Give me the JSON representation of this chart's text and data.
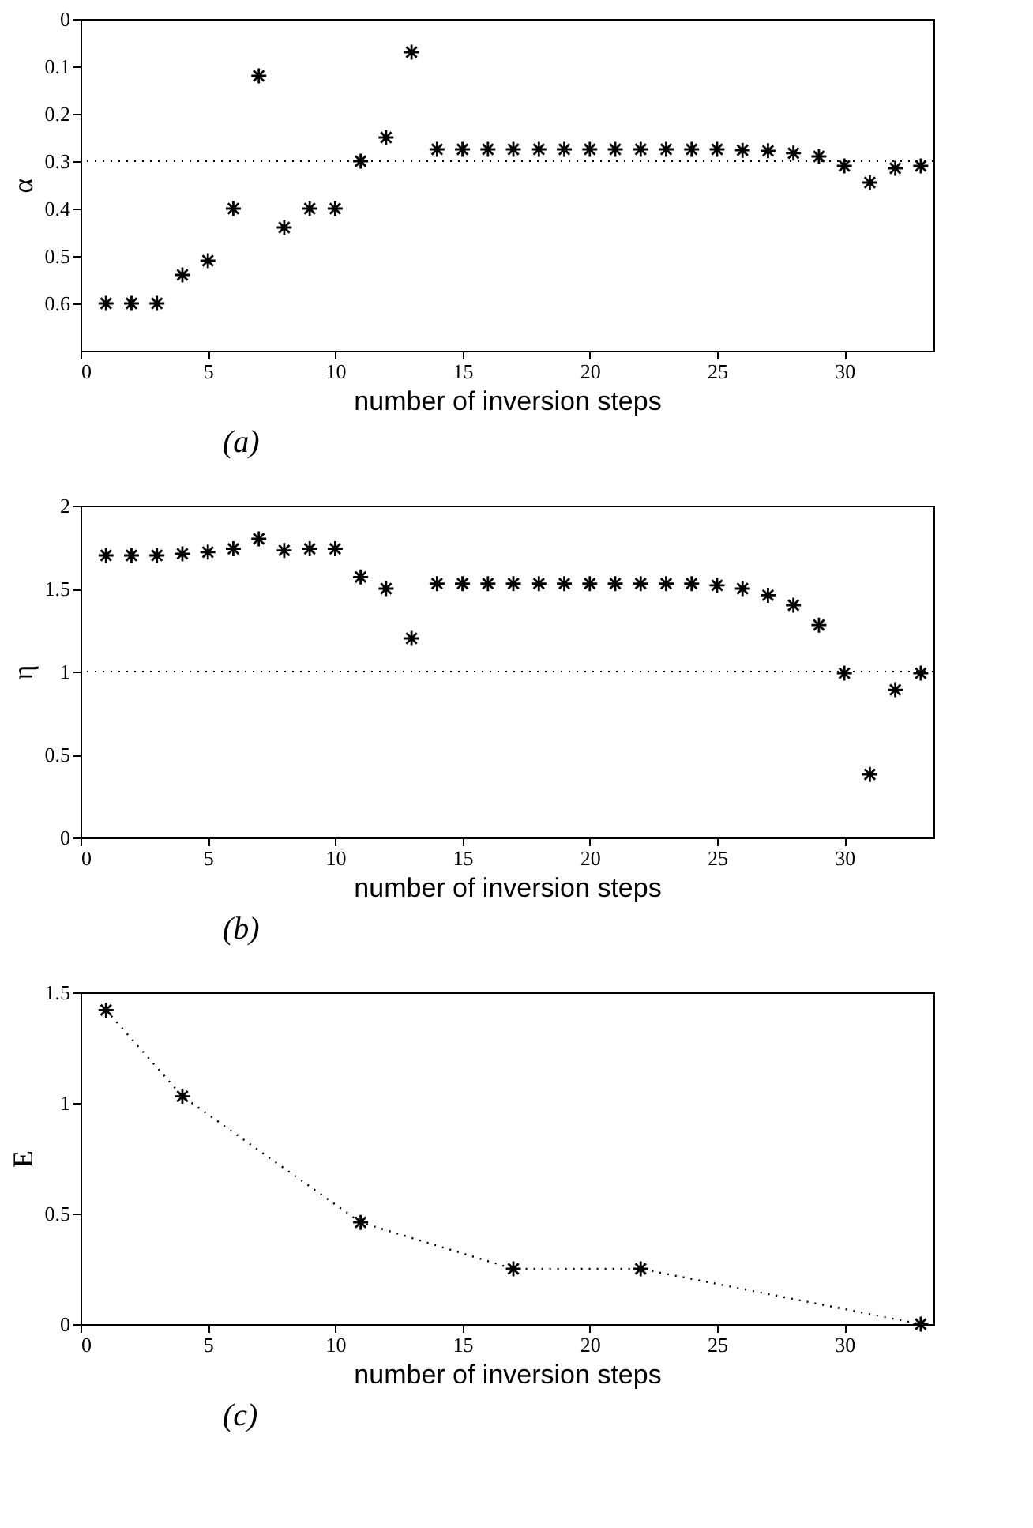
{
  "chart_data": [
    {
      "type": "scatter",
      "xlabel": "number of inversion steps",
      "ylabel": "α",
      "annotations": [
        "(a)"
      ],
      "marker": "cross",
      "grid": false,
      "x": [
        1,
        2,
        3,
        4,
        5,
        6,
        7,
        8,
        9,
        10,
        11,
        12,
        13,
        14,
        15,
        16,
        17,
        18,
        19,
        20,
        21,
        22,
        23,
        24,
        25,
        26,
        27,
        28,
        29,
        30,
        31,
        32,
        33
      ],
      "series": [
        {
          "color": "#000000",
          "values": [
            0.6,
            0.6,
            0.6,
            0.54,
            0.51,
            0.4,
            0.12,
            0.44,
            0.4,
            0.4,
            0.3,
            0.25,
            0.07,
            0.275,
            0.275,
            0.275,
            0.275,
            0.275,
            0.275,
            0.275,
            0.275,
            0.275,
            0.275,
            0.275,
            0.275,
            0.277,
            0.278,
            0.283,
            0.29,
            0.31,
            0.345,
            0.315,
            0.31
          ]
        }
      ],
      "xlim": [
        0,
        33.5
      ],
      "xticks": [
        0,
        5,
        10,
        15,
        20,
        25,
        30
      ],
      "ylim": [
        0.7,
        0
      ],
      "yticks": [
        0,
        0.1,
        0.2,
        0.3,
        0.4,
        0.5,
        0.6
      ],
      "ref_lines": [
        {
          "axis": "y",
          "value": 0.3,
          "color": "#000000",
          "line_style": "dotted"
        }
      ]
    },
    {
      "type": "scatter",
      "xlabel": "number of inversion steps",
      "ylabel": "η",
      "annotations": [
        "(b)"
      ],
      "marker": "cross",
      "grid": false,
      "x": [
        1,
        2,
        3,
        4,
        5,
        6,
        7,
        8,
        9,
        10,
        11,
        12,
        13,
        14,
        15,
        16,
        17,
        18,
        19,
        20,
        21,
        22,
        23,
        24,
        25,
        26,
        27,
        28,
        29,
        30,
        31,
        32,
        33
      ],
      "series": [
        {
          "color": "#000000",
          "values": [
            1.7,
            1.7,
            1.7,
            1.71,
            1.72,
            1.74,
            1.8,
            1.73,
            1.74,
            1.74,
            1.57,
            1.5,
            1.2,
            1.53,
            1.53,
            1.53,
            1.53,
            1.53,
            1.53,
            1.53,
            1.53,
            1.53,
            1.53,
            1.53,
            1.52,
            1.5,
            1.46,
            1.4,
            1.28,
            0.99,
            0.38,
            0.89,
            0.99
          ]
        }
      ],
      "xlim": [
        0,
        33.5
      ],
      "xticks": [
        0,
        5,
        10,
        15,
        20,
        25,
        30
      ],
      "ylim": [
        0,
        2
      ],
      "yticks": [
        0,
        0.5,
        1,
        1.5,
        2
      ],
      "ref_lines": [
        {
          "axis": "y",
          "value": 1,
          "color": "#000000",
          "line_style": "dotted"
        }
      ]
    },
    {
      "type": "line",
      "xlabel": "number of inversion steps",
      "ylabel": "E",
      "annotations": [
        "(c)"
      ],
      "marker": "cross",
      "line_style": "dotted",
      "grid": false,
      "x": [
        1,
        4,
        11,
        17,
        22,
        33
      ],
      "series": [
        {
          "color": "#000000",
          "values": [
            1.42,
            1.03,
            0.46,
            0.25,
            0.25,
            0
          ]
        }
      ],
      "xlim": [
        0,
        33.5
      ],
      "xticks": [
        0,
        5,
        10,
        15,
        20,
        25,
        30
      ],
      "ylim": [
        0,
        1.5
      ],
      "yticks": [
        0,
        0.5,
        1,
        1.5
      ]
    }
  ]
}
